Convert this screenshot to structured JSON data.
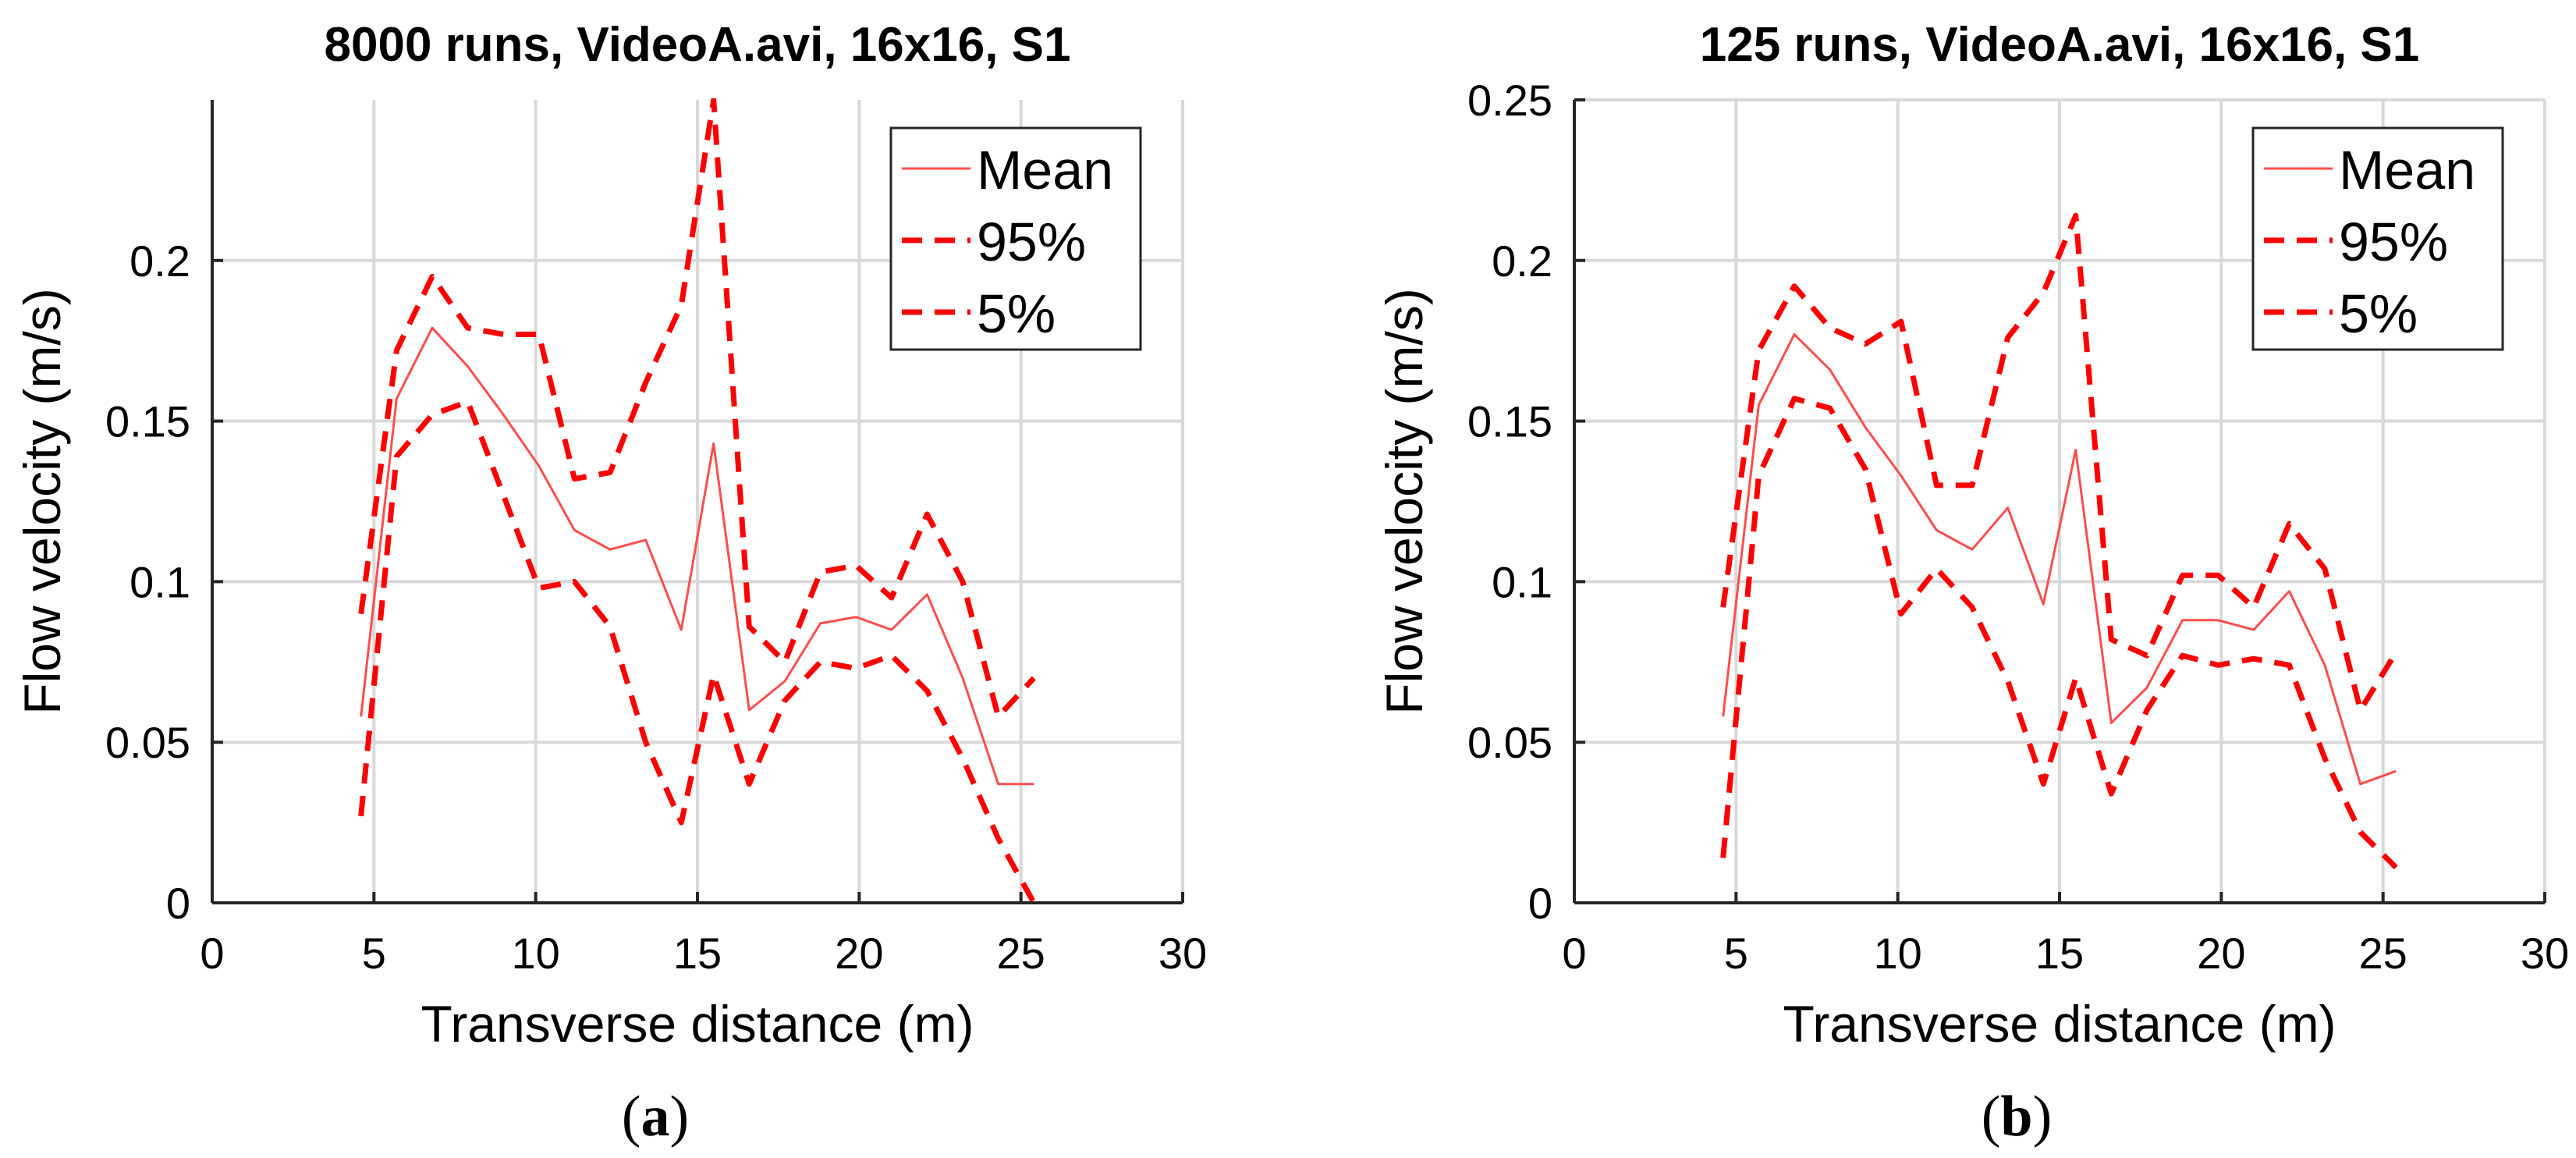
{
  "chart_data": [
    {
      "type": "line",
      "title": "8000 runs, VideoA.avi, 16x16, S1",
      "xlabel": "Transverse distance (m)",
      "ylabel": "Flow velocity (m/s)",
      "caption_letter": "a",
      "xlim": [
        0,
        30
      ],
      "ylim": [
        0,
        0.25
      ],
      "xticks": [
        0,
        5,
        10,
        15,
        20,
        25,
        30
      ],
      "yticks": [
        0,
        0.05,
        0.1,
        0.15,
        0.2
      ],
      "xtick_labels": [
        "0",
        "5",
        "10",
        "15",
        "20",
        "25",
        "30"
      ],
      "ytick_labels": [
        "0",
        "0.05",
        "0.1",
        "0.15",
        "0.2"
      ],
      "grid": true,
      "legend_position": "top-right",
      "x": [
        4.6,
        5.7,
        6.8,
        7.9,
        9.0,
        10.1,
        11.2,
        12.3,
        13.4,
        14.5,
        15.5,
        16.6,
        17.7,
        18.8,
        19.9,
        21.0,
        22.1,
        23.2,
        24.3,
        25.4
      ],
      "series": [
        {
          "name": "Mean",
          "color": "#ff4d4d",
          "style": "solid",
          "values": [
            0.058,
            0.157,
            0.179,
            0.167,
            0.152,
            0.136,
            0.116,
            0.11,
            0.113,
            0.085,
            0.143,
            0.06,
            0.069,
            0.087,
            0.089,
            0.085,
            0.096,
            0.07,
            0.037,
            0.037
          ]
        },
        {
          "name": "95%",
          "color": "#ff0000",
          "style": "dashed",
          "values": [
            0.09,
            0.172,
            0.195,
            0.179,
            0.177,
            0.177,
            0.132,
            0.134,
            0.162,
            0.186,
            0.25,
            0.086,
            0.075,
            0.103,
            0.105,
            0.095,
            0.121,
            0.1,
            0.058,
            0.07
          ]
        },
        {
          "name": "5%",
          "color": "#ff0000",
          "style": "dashed",
          "values": [
            0.027,
            0.139,
            0.152,
            0.156,
            0.127,
            0.098,
            0.1,
            0.086,
            0.05,
            0.025,
            0.071,
            0.037,
            0.063,
            0.075,
            0.073,
            0.077,
            0.066,
            0.045,
            0.02,
            0.0
          ]
        }
      ]
    },
    {
      "type": "line",
      "title": "125 runs, VideoA.avi, 16x16, S1",
      "xlabel": "Transverse distance (m)",
      "ylabel": "Flow velocity (m/s)",
      "caption_letter": "b",
      "xlim": [
        0,
        30
      ],
      "ylim": [
        0,
        0.25
      ],
      "xticks": [
        0,
        5,
        10,
        15,
        20,
        25,
        30
      ],
      "yticks": [
        0,
        0.05,
        0.1,
        0.15,
        0.2,
        0.25
      ],
      "xtick_labels": [
        "0",
        "5",
        "10",
        "15",
        "20",
        "25",
        "30"
      ],
      "ytick_labels": [
        "0",
        "0.05",
        "0.1",
        "0.15",
        "0.2",
        "0.25"
      ],
      "grid": true,
      "legend_position": "top-right",
      "x": [
        4.6,
        5.7,
        6.8,
        7.9,
        9.0,
        10.1,
        11.2,
        12.3,
        13.4,
        14.5,
        15.5,
        16.6,
        17.7,
        18.8,
        19.9,
        21.0,
        22.1,
        23.2,
        24.3,
        25.4
      ],
      "series": [
        {
          "name": "Mean",
          "color": "#ff4d4d",
          "style": "solid",
          "values": [
            0.058,
            0.155,
            0.177,
            0.166,
            0.148,
            0.133,
            0.116,
            0.11,
            0.123,
            0.093,
            0.141,
            0.056,
            0.067,
            0.088,
            0.088,
            0.085,
            0.097,
            0.074,
            0.037,
            0.041
          ]
        },
        {
          "name": "95%",
          "color": "#ff0000",
          "style": "dashed",
          "values": [
            0.092,
            0.172,
            0.192,
            0.179,
            0.174,
            0.181,
            0.13,
            0.13,
            0.176,
            0.19,
            0.214,
            0.082,
            0.077,
            0.102,
            0.102,
            0.092,
            0.118,
            0.104,
            0.06,
            0.078
          ]
        },
        {
          "name": "5%",
          "color": "#ff0000",
          "style": "dashed",
          "values": [
            0.014,
            0.133,
            0.157,
            0.154,
            0.135,
            0.09,
            0.104,
            0.092,
            0.069,
            0.037,
            0.07,
            0.034,
            0.06,
            0.077,
            0.074,
            0.076,
            0.074,
            0.045,
            0.022,
            0.011
          ]
        }
      ]
    }
  ]
}
